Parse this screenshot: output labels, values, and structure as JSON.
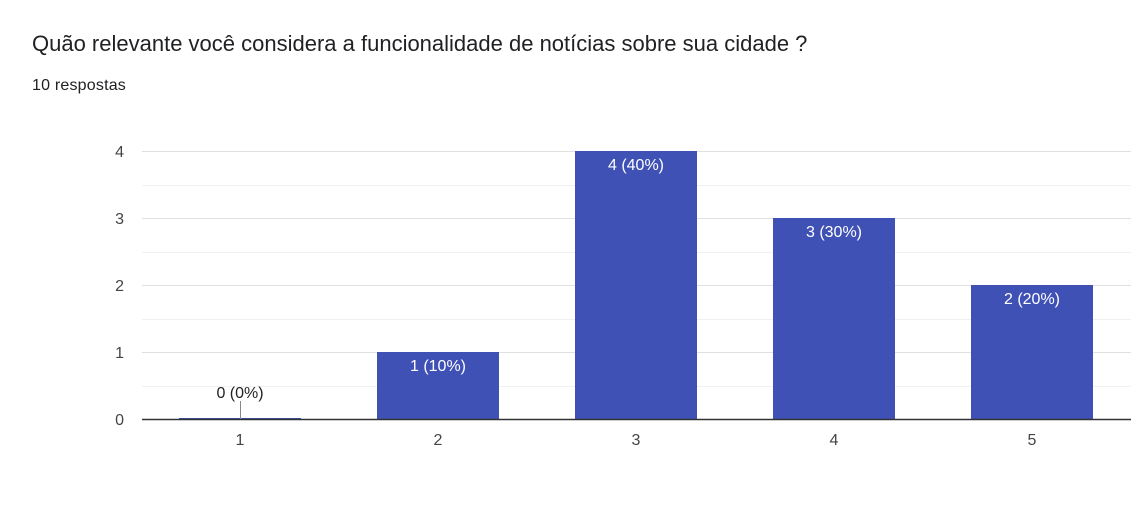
{
  "header": {
    "title": "Quão relevante você considera a funcionalidade de notícias sobre sua cidade ?",
    "responses": "10 respostas"
  },
  "colors": {
    "bar": "#3f51b5",
    "axis": "#333333",
    "grid_major": "#e0e0e0",
    "grid_minor": "#f1f1f1"
  },
  "chart_data": {
    "type": "bar",
    "categories": [
      "1",
      "2",
      "3",
      "4",
      "5"
    ],
    "values": [
      0,
      1,
      4,
      3,
      2
    ],
    "data_labels": [
      "0 (0%)",
      "1 (10%)",
      "4 (40%)",
      "3 (30%)",
      "2 (20%)"
    ],
    "y_ticks": [
      "0",
      "1",
      "2",
      "3",
      "4"
    ],
    "ylim": [
      0,
      4
    ],
    "grid": true,
    "legend": false
  }
}
